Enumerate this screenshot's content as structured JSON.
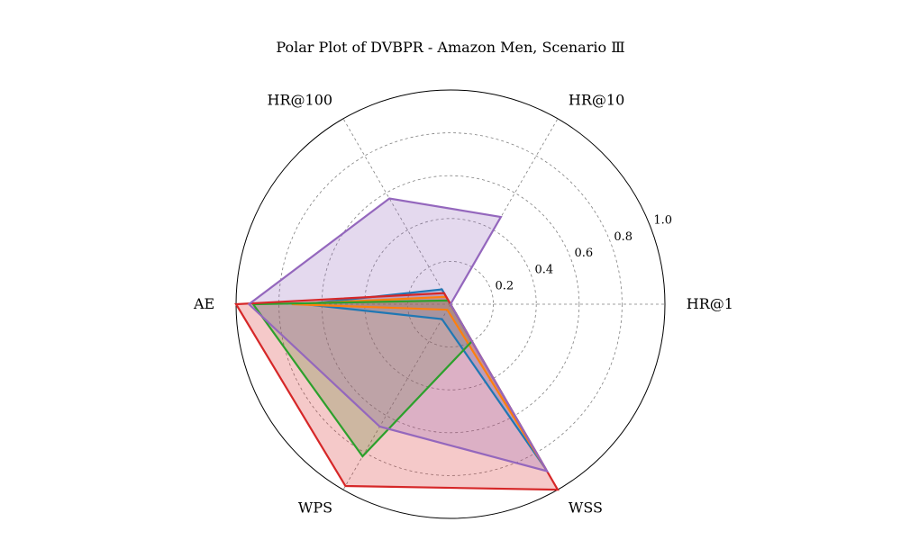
{
  "chart_data": {
    "type": "radar",
    "title": "Polar Plot of DVBPR - Amazon Men, Scenario Ⅲ",
    "axes": [
      "HR@1",
      "HR@10",
      "HR@100",
      "AE",
      "WPS",
      "WSS"
    ],
    "rlim": [
      0,
      1.0
    ],
    "r_ticks": [
      0.2,
      0.4,
      0.6,
      0.8,
      1.0
    ],
    "r_tick_labels": [
      "0.2",
      "0.4",
      "0.6",
      "0.8",
      "1.0"
    ],
    "grid": true,
    "series": [
      {
        "color": "#1f77b4",
        "values": [
          0.0,
          0.0,
          0.08,
          0.68,
          0.08,
          0.89
        ]
      },
      {
        "color": "#ff7f0e",
        "values": [
          0.0,
          0.0,
          0.04,
          0.74,
          0.03,
          0.89
        ]
      },
      {
        "color": "#2ca02c",
        "values": [
          0.0,
          0.0,
          0.02,
          0.92,
          0.82,
          0.2
        ]
      },
      {
        "color": "#d62728",
        "values": [
          0.0,
          0.0,
          0.06,
          1.0,
          0.98,
          1.0
        ]
      },
      {
        "color": "#9467bd",
        "values": [
          0.0,
          0.47,
          0.57,
          0.94,
          0.66,
          0.9
        ]
      }
    ]
  }
}
